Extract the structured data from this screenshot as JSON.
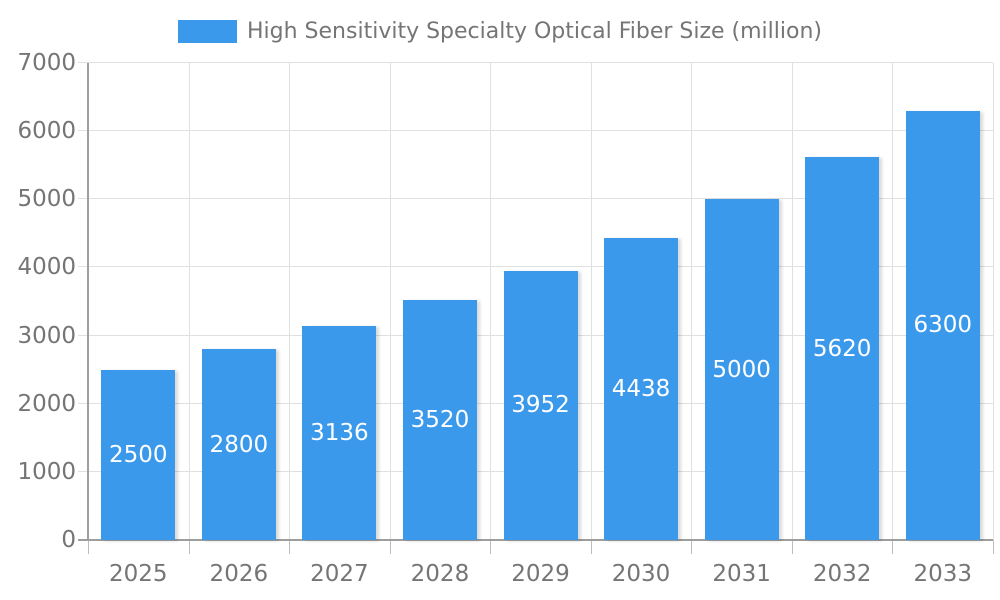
{
  "chart_data": {
    "type": "bar",
    "title": "High Sensitivity Specialty Optical Fiber Size (million)",
    "series_name": "High Sensitivity Specialty Optical Fiber Size (million)",
    "categories": [
      "2025",
      "2026",
      "2027",
      "2028",
      "2029",
      "2030",
      "2031",
      "2032",
      "2033"
    ],
    "values": [
      2500,
      2800,
      3136,
      3520,
      3952,
      4438,
      5000,
      5620,
      6300
    ],
    "xlabel": "",
    "ylabel": "",
    "ylim": [
      0,
      7000
    ],
    "yticks": [
      0,
      1000,
      2000,
      3000,
      4000,
      5000,
      6000,
      7000
    ],
    "grid": true,
    "legend_position": "top",
    "value_label_placement": "inside-center",
    "colors": {
      "bar": "#3B99EB",
      "value_label": "#FFFFFF",
      "axis_text": "#757575",
      "grid_line": "#E0E0E0",
      "tick_line": "#BDBDBD",
      "axis_line": "#9E9E9E",
      "background": "#FFFFFF"
    }
  }
}
